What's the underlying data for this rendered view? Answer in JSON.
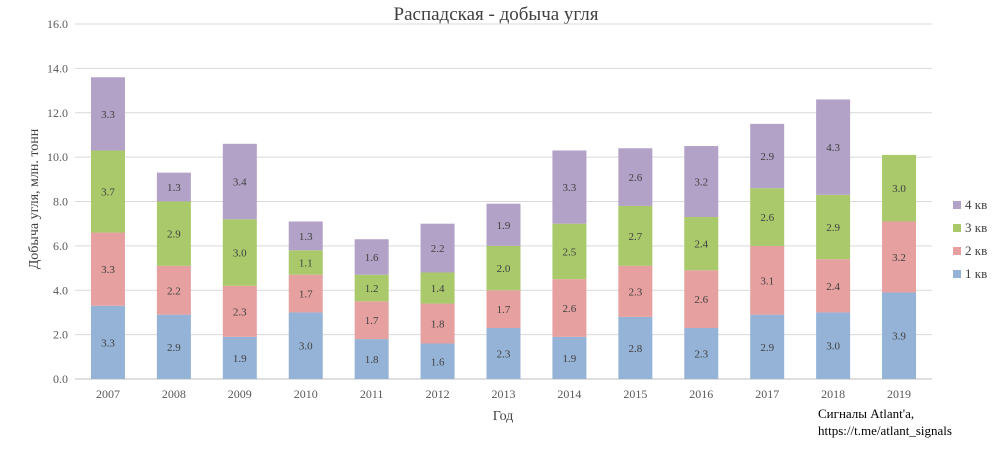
{
  "chart_data": {
    "type": "bar",
    "stacked": true,
    "title": "Распадская - добыча угля",
    "xlabel": "Год",
    "ylabel": "Добыча угля, млн. тонн",
    "ylim": [
      0,
      16
    ],
    "yticks": [
      "0.0",
      "2.0",
      "4.0",
      "6.0",
      "8.0",
      "10.0",
      "12.0",
      "14.0",
      "16.0"
    ],
    "grid": true,
    "legend_position": "right",
    "categories": [
      "2007",
      "2008",
      "2009",
      "2010",
      "2011",
      "2012",
      "2013",
      "2014",
      "2015",
      "2016",
      "2017",
      "2018",
      "2019"
    ],
    "series": [
      {
        "name": "1 кв",
        "color": "#95b3d7",
        "values": [
          3.3,
          2.9,
          1.9,
          3.0,
          1.8,
          1.6,
          2.3,
          1.9,
          2.8,
          2.3,
          2.9,
          3.0,
          3.9
        ]
      },
      {
        "name": "2 кв",
        "color": "#e6a0a0",
        "values": [
          3.3,
          2.2,
          2.3,
          1.7,
          1.7,
          1.8,
          1.7,
          2.6,
          2.3,
          2.6,
          3.1,
          2.4,
          3.2
        ]
      },
      {
        "name": "3 кв",
        "color": "#a9c96b",
        "values": [
          3.7,
          2.9,
          3.0,
          1.1,
          1.2,
          1.4,
          2.0,
          2.5,
          2.7,
          2.4,
          2.6,
          2.9,
          3.0
        ]
      },
      {
        "name": "4 кв",
        "color": "#b3a2c7",
        "values": [
          3.3,
          1.3,
          3.4,
          1.3,
          1.6,
          2.2,
          1.9,
          3.3,
          2.6,
          3.2,
          2.9,
          4.3,
          null
        ]
      }
    ]
  },
  "source": {
    "line1": "Сигналы Atlant'a,",
    "line2": "https://t.me/atlant_signals"
  }
}
